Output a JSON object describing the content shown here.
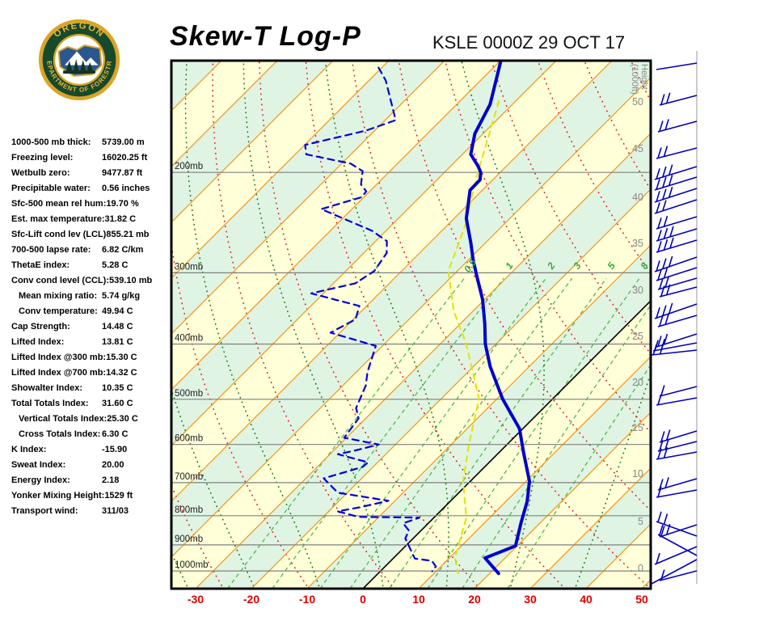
{
  "header": {
    "title": "Skew-T Log-P",
    "station_line": "KSLE 0000Z 29 OCT 17",
    "logo": {
      "arc_top": "OREGON",
      "arc_bottom": "DEPARTMENT OF FORESTRY"
    }
  },
  "stats": {
    "rows": [
      {
        "label": "1000-500 mb thick:",
        "value": "5739.00 m",
        "indent": false
      },
      {
        "label": "Freezing level:",
        "value": "16020.25 ft",
        "indent": false
      },
      {
        "label": "Wetbulb zero:",
        "value": "9477.87 ft",
        "indent": false
      },
      {
        "label": "Precipitable water:",
        "value": "0.56 inches",
        "indent": false
      },
      {
        "label": "Sfc-500 mean rel hum:",
        "value": "19.70 %",
        "indent": false
      },
      {
        "label": "Est. max temperature:",
        "value": "31.82 C",
        "indent": false
      },
      {
        "label": "Sfc-Lift cond lev (LCL)",
        "value": "855.21 mb",
        "indent": false
      },
      {
        "label": "700-500 lapse rate:",
        "value": "6.82 C/km",
        "indent": false
      },
      {
        "label": "ThetaE index:",
        "value": "5.28 C",
        "indent": false
      },
      {
        "label": "Conv cond level (CCL):",
        "value": "539.10 mb",
        "indent": false
      },
      {
        "label": "Mean mixing ratio:",
        "value": "5.74 g/kg",
        "indent": true
      },
      {
        "label": "Conv temperature:",
        "value": "49.94 C",
        "indent": true
      },
      {
        "label": "Cap Strength:",
        "value": "14.48 C",
        "indent": false
      },
      {
        "label": "Lifted Index:",
        "value": "13.81 C",
        "indent": false
      },
      {
        "label": "Lifted Index @300 mb:",
        "value": "15.30 C",
        "indent": false
      },
      {
        "label": "Lifted Index @700 mb:",
        "value": "14.32 C",
        "indent": false
      },
      {
        "label": "Showalter Index:",
        "value": "10.35 C",
        "indent": false
      },
      {
        "label": "Total Totals Index:",
        "value": "31.60 C",
        "indent": false
      },
      {
        "label": "Vertical Totals Index:",
        "value": "25.30 C",
        "indent": true
      },
      {
        "label": "Cross Totals Index:",
        "value": "6.30 C",
        "indent": true
      },
      {
        "label": "K Index:",
        "value": "-15.90",
        "indent": false
      },
      {
        "label": "Sweat Index:",
        "value": "20.00",
        "indent": false
      },
      {
        "label": "Energy Index:",
        "value": "2.18",
        "indent": false
      },
      {
        "label": "Yonker Mixing Height:",
        "value": "1529 ft",
        "indent": false
      },
      {
        "label": "Transport wind:",
        "value": "311/03",
        "indent": false
      }
    ]
  },
  "chart_data": {
    "type": "skew-t-log-p-sounding",
    "x_axis": {
      "unit": "C",
      "tick_values": [
        -30,
        -20,
        -10,
        0,
        10,
        20,
        30,
        40,
        50
      ]
    },
    "pressure_levels_mb": [
      200,
      300,
      400,
      500,
      600,
      700,
      800,
      900,
      1000
    ],
    "pressure_label_suffix": "mb",
    "height_axis": {
      "title": "Height",
      "subtitle": "(1000ft)",
      "ticks": [
        50,
        45,
        40,
        35,
        30,
        25,
        20,
        15,
        10,
        5,
        0
      ]
    },
    "isotherms": {
      "range": [
        -120,
        50
      ],
      "step": 10,
      "freezing_line_value": 0
    },
    "dry_adiabats_thetaC": [
      -30,
      -15,
      0,
      15,
      30,
      45,
      60,
      75,
      90,
      105,
      120,
      135,
      150,
      165,
      180,
      195
    ],
    "moist_adiabats_thetawC": [
      -60,
      -48,
      -36,
      -24,
      -12,
      0,
      12,
      24,
      36
    ],
    "mixing_ratio_lines_gkg": [
      0.5,
      1,
      2,
      3,
      5,
      8,
      12,
      20
    ],
    "mixing_ratio_labels": [
      "0.5",
      "1",
      "2",
      "3",
      "5",
      "8"
    ],
    "series": [
      {
        "name": "temperature",
        "style": "solid",
        "points_p_t": [
          [
            127,
            -70
          ],
          [
            152,
            -64
          ],
          [
            171,
            -61.5
          ],
          [
            186,
            -58.5
          ],
          [
            195,
            -55.1
          ],
          [
            200,
            -53.5
          ],
          [
            206,
            -52.3
          ],
          [
            215,
            -52.2
          ],
          [
            241,
            -47.8
          ],
          [
            266,
            -42.6
          ],
          [
            284,
            -39.3
          ],
          [
            303,
            -35.8
          ],
          [
            334,
            -30.4
          ],
          [
            368,
            -25.7
          ],
          [
            400,
            -21.9
          ],
          [
            438,
            -17.0
          ],
          [
            499,
            -9.0
          ],
          [
            563,
            -0.6
          ],
          [
            621,
            4.5
          ],
          [
            696,
            10.6
          ],
          [
            755,
            13.8
          ],
          [
            822,
            16.5
          ],
          [
            904,
            19.7
          ],
          [
            949,
            16.4
          ],
          [
            1010,
            21.6
          ]
        ]
      },
      {
        "name": "dewpoint",
        "style": "dashed",
        "points_p_t": [
          [
            131,
            -90.6
          ],
          [
            138,
            -87
          ],
          [
            162,
            -78.1
          ],
          [
            169,
            -81.6
          ],
          [
            179,
            -89.9
          ],
          [
            186,
            -88
          ],
          [
            193,
            -78.4
          ],
          [
            199,
            -74.9
          ],
          [
            210,
            -72.8
          ],
          [
            216,
            -70.6
          ],
          [
            221,
            -70.4
          ],
          [
            232,
            -75.5
          ],
          [
            253,
            -62.6
          ],
          [
            264,
            -58
          ],
          [
            277,
            -55.9
          ],
          [
            298,
            -54.9
          ],
          [
            313,
            -56.1
          ],
          [
            326,
            -62.2
          ],
          [
            343,
            -51.3
          ],
          [
            362,
            -49.6
          ],
          [
            382,
            -51.7
          ],
          [
            403,
            -41.2
          ],
          [
            448,
            -38
          ],
          [
            473,
            -35.9
          ],
          [
            518,
            -33.6
          ],
          [
            540,
            -31.3
          ],
          [
            584,
            -30.4
          ],
          [
            600,
            -23
          ],
          [
            616,
            -26.4
          ],
          [
            624,
            -28.6
          ],
          [
            645,
            -21.7
          ],
          [
            657,
            -21.9
          ],
          [
            688,
            -26.8
          ],
          [
            729,
            -21.7
          ],
          [
            753,
            -11.2
          ],
          [
            773,
            -15.1
          ],
          [
            786,
            -18.4
          ],
          [
            804,
            -13.6
          ],
          [
            806,
            -2.6
          ],
          [
            825,
            -4.5
          ],
          [
            849,
            -2.2
          ],
          [
            877,
            -1.4
          ],
          [
            951,
            3.9
          ],
          [
            960,
            7.4
          ],
          [
            982,
            9.1
          ],
          [
            1001,
            9.3
          ]
        ]
      },
      {
        "name": "wet_bulb",
        "style": "dashed",
        "points_p_t": [
          [
            150,
            -63
          ],
          [
            200,
            -54
          ],
          [
            250,
            -46.5
          ],
          [
            298,
            -41.6
          ],
          [
            350,
            -33.5
          ],
          [
            398,
            -25.6
          ],
          [
            499,
            -13.2
          ],
          [
            594,
            -7.2
          ],
          [
            696,
            -1.3
          ],
          [
            806,
            5.8
          ],
          [
            949,
            11.0
          ],
          [
            1009,
            14.3
          ]
        ]
      }
    ],
    "wind_barbs": {
      "items_y_len_drop_ticks": [
        [
          78,
          50,
          8,
          0
        ],
        [
          118,
          46,
          12,
          2
        ],
        [
          150,
          48,
          13,
          2
        ],
        [
          183,
          50,
          13,
          2
        ],
        [
          206,
          52,
          16,
          3
        ],
        [
          219,
          52,
          16,
          3
        ],
        [
          233,
          52,
          17,
          3
        ],
        [
          247,
          52,
          17,
          2
        ],
        [
          268,
          50,
          15,
          2
        ],
        [
          283,
          50,
          15,
          3
        ],
        [
          297,
          50,
          15,
          3
        ],
        [
          318,
          52,
          18,
          3
        ],
        [
          331,
          50,
          16,
          2
        ],
        [
          344,
          48,
          14,
          2
        ],
        [
          355,
          46,
          12,
          2
        ],
        [
          376,
          52,
          18,
          3
        ],
        [
          390,
          48,
          14,
          2
        ],
        [
          413,
          50,
          16,
          2
        ],
        [
          424,
          54,
          10,
          2
        ],
        [
          433,
          56,
          6,
          2
        ],
        [
          478,
          46,
          12,
          1
        ],
        [
          492,
          50,
          9,
          1
        ],
        [
          533,
          46,
          14,
          2
        ],
        [
          546,
          48,
          12,
          2
        ],
        [
          559,
          50,
          9,
          2
        ],
        [
          592,
          48,
          14,
          2
        ],
        [
          606,
          50,
          9,
          1
        ],
        [
          649,
          46,
          15,
          2
        ],
        [
          663,
          50,
          -18,
          2
        ],
        [
          676,
          52,
          22,
          1
        ],
        [
          687,
          48,
          -26,
          1
        ],
        [
          692,
          56,
          30,
          0
        ],
        [
          706,
          46,
          12,
          1
        ]
      ]
    },
    "colors": {
      "band_yellow": "#ffffd8",
      "band_green": "#e0f4e3",
      "isotherm": "#f29a20",
      "freezing_isotherm": "#000000",
      "dry_adiabat": "#dd2222",
      "moist_adiabat": "#187a18",
      "mixing_ratio": "#4cbb4c",
      "mixing_label": "#3aa83a",
      "pressure_line": "#808080",
      "pressure_label": "#222222",
      "x_axis_label": "#e00000",
      "height_label": "#888888",
      "temperature": "#0000cc",
      "dewpoint": "#0000dd",
      "wet_bulb": "#e3e300",
      "barb": "#0000bb",
      "barb_staff": "#cccccc",
      "border": "#000000"
    }
  }
}
